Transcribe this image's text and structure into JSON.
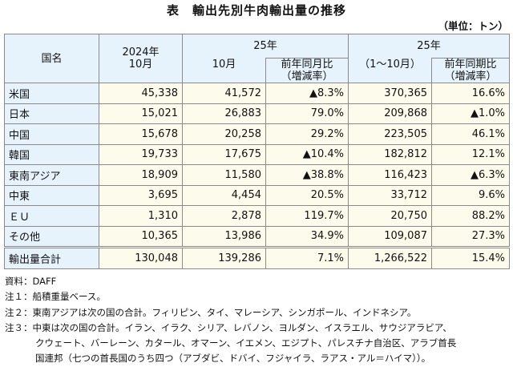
{
  "title": "表　輸出先別牛肉輸出量の推移",
  "unit": "（単位：トン）",
  "headers": {
    "country": "国名",
    "c2024": "2024年\n10月",
    "c25_line1": "25年",
    "c25_line2": "10月",
    "yoy_m": "前年同月比",
    "yoy_m2": "（増減率）",
    "c25cum": "25年",
    "c25cum2": "（1～10月）",
    "yoy_p": "前年同期比",
    "yoy_p2": "（増減率）"
  },
  "rows": [
    {
      "name": "米国",
      "v2024": "45,338",
      "v25": "41,572",
      "yoy": "▲8.3%",
      "cum": "370,365",
      "cumyoy": "16.6%"
    },
    {
      "name": "日本",
      "v2024": "15,021",
      "v25": "26,883",
      "yoy": "79.0%",
      "cum": "209,868",
      "cumyoy": "▲1.0%"
    },
    {
      "name": "中国",
      "v2024": "15,678",
      "v25": "20,258",
      "yoy": "29.2%",
      "cum": "223,505",
      "cumyoy": "46.1%"
    },
    {
      "name": "韓国",
      "v2024": "19,733",
      "v25": "17,675",
      "yoy": "▲10.4%",
      "cum": "182,812",
      "cumyoy": "12.1%"
    },
    {
      "name": "東南アジア",
      "v2024": "18,909",
      "v25": "11,580",
      "yoy": "▲38.8%",
      "cum": "116,423",
      "cumyoy": "▲6.3%"
    },
    {
      "name": "中東",
      "v2024": "3,695",
      "v25": "4,454",
      "yoy": "20.5%",
      "cum": "33,712",
      "cumyoy": "9.6%"
    },
    {
      "name": "ＥＵ",
      "v2024": "1,310",
      "v25": "2,878",
      "yoy": "119.7%",
      "cum": "20,750",
      "cumyoy": "88.2%"
    },
    {
      "name": "その他",
      "v2024": "10,365",
      "v25": "13,986",
      "yoy": "34.9%",
      "cum": "109,087",
      "cumyoy": "27.3%"
    },
    {
      "name": "輸出量合計",
      "v2024": "130,048",
      "v25": "139,286",
      "yoy": "7.1%",
      "cum": "1,266,522",
      "cumyoy": "15.4%"
    }
  ],
  "notes": [
    "資料：DAFF",
    "注１：船積重量ベース。",
    "注２：東南アジアは次の国の合計。フィリピン、タイ、マレーシア、シンガポール、インドネシア。",
    "注３：中東は次の国の合計。イラン、イラク、シリア、レバノン、ヨルダン、イスラエル、サウジアラビア、",
    "クウェート、バーレーン、カタール、オマーン、イエメン、エジプト、パレスチナ自治区、アラブ首長",
    "国連邦（七つの首長国のうち四つ（アブダビ、ドバイ、フジャイラ、ラアス・アル＝ハイマ））。"
  ]
}
